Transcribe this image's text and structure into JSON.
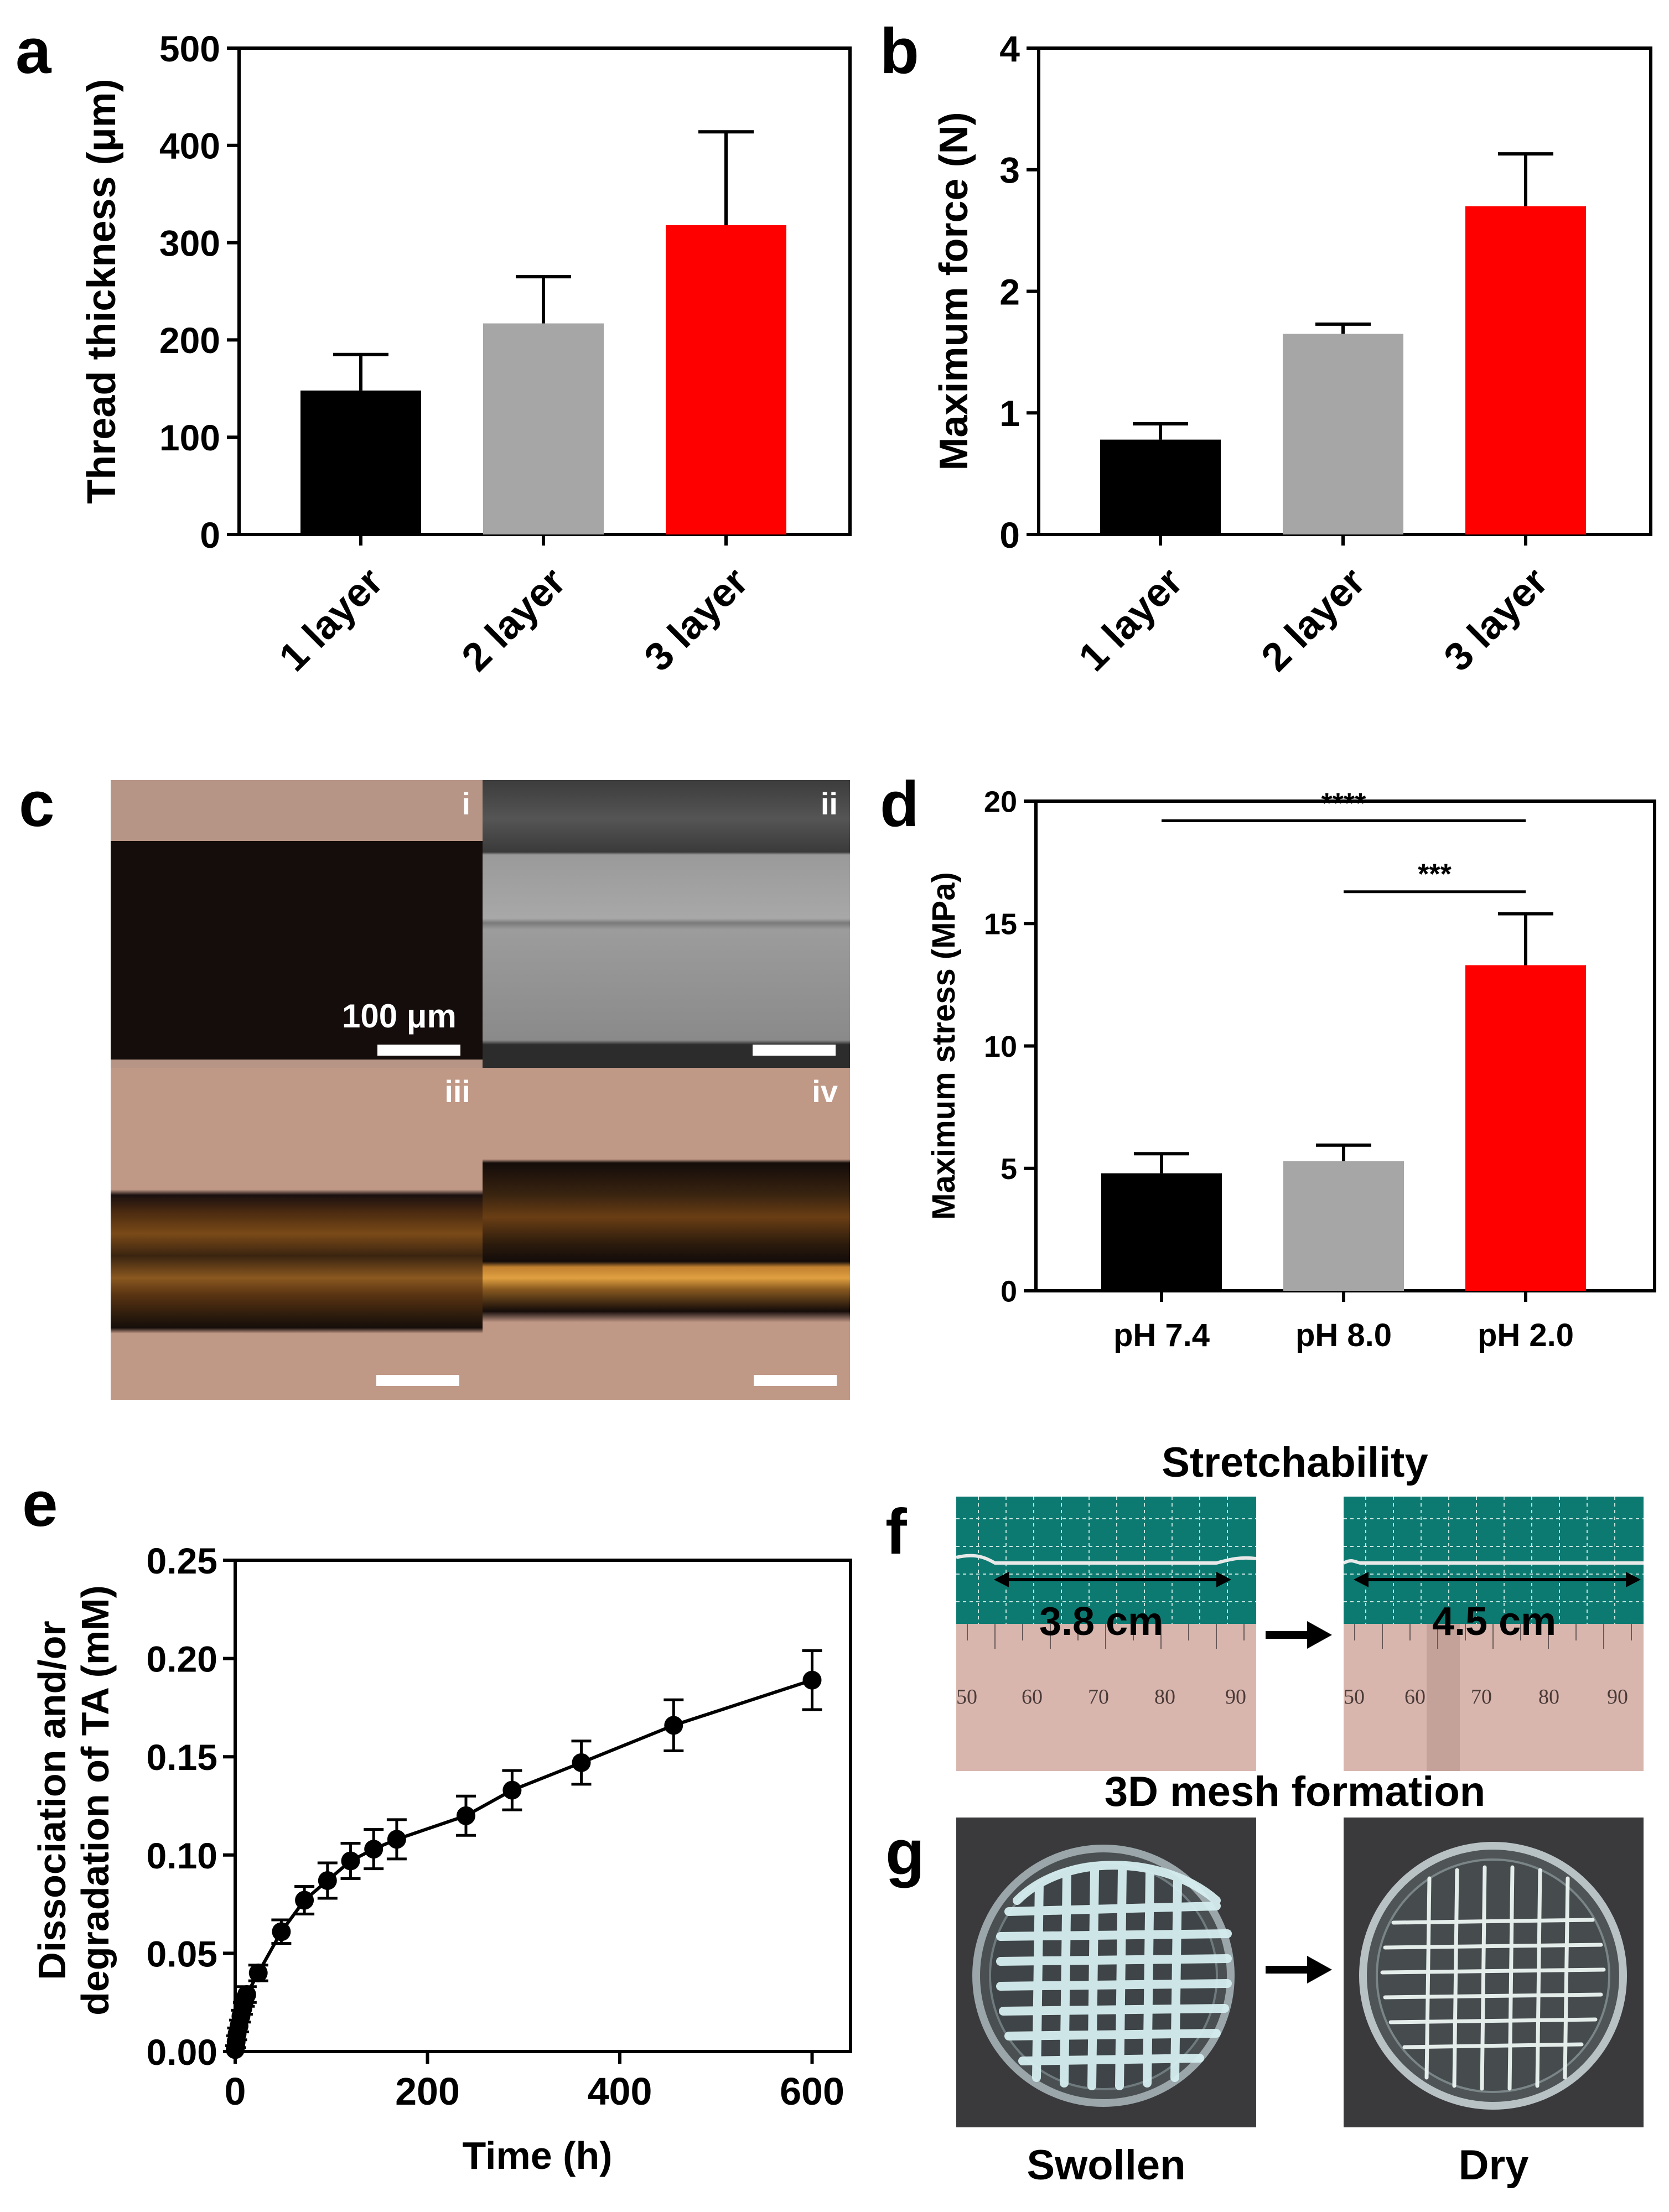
{
  "panel_labels": {
    "a": "a",
    "b": "b",
    "c": "c",
    "d": "d",
    "e": "e",
    "f": "f",
    "g": "g"
  },
  "colors": {
    "black": "#000000",
    "gray": "#a6a6a6",
    "red": "#ff0000"
  },
  "chart_data": [
    {
      "id": "a",
      "type": "bar",
      "categories": [
        "1 layer",
        "2 layer",
        "3 layer"
      ],
      "values": [
        148,
        217,
        318
      ],
      "errors": [
        37,
        48,
        96
      ],
      "colors": [
        "#000000",
        "#a6a6a6",
        "#ff0000"
      ],
      "ylabel": "Thread thickness (μm)",
      "ylim": [
        0,
        500
      ],
      "yticks": [
        0,
        100,
        200,
        300,
        400,
        500
      ]
    },
    {
      "id": "b",
      "type": "bar",
      "categories": [
        "1 layer",
        "2 layer",
        "3 layer"
      ],
      "values": [
        0.78,
        1.65,
        2.7
      ],
      "errors": [
        0.13,
        0.08,
        0.43
      ],
      "colors": [
        "#000000",
        "#a6a6a6",
        "#ff0000"
      ],
      "ylabel": "Maximum force (N)",
      "ylim": [
        0,
        4
      ],
      "yticks": [
        0,
        1,
        2,
        3,
        4
      ]
    },
    {
      "id": "d",
      "type": "bar",
      "categories": [
        "pH 7.4",
        "pH 8.0",
        "pH 2.0"
      ],
      "values": [
        4.8,
        5.3,
        13.3
      ],
      "errors": [
        0.8,
        0.65,
        2.1
      ],
      "colors": [
        "#000000",
        "#a6a6a6",
        "#ff0000"
      ],
      "ylabel": "Maximum stress (MPa)",
      "ylim": [
        0,
        20
      ],
      "yticks": [
        0,
        5,
        10,
        15,
        20
      ],
      "significance": [
        {
          "from": 0,
          "to": 2,
          "label": "****",
          "y": 19.2
        },
        {
          "from": 1,
          "to": 2,
          "label": "***",
          "y": 16.3
        }
      ]
    },
    {
      "id": "e",
      "type": "line",
      "x": [
        0,
        1,
        2,
        4,
        6,
        8,
        10,
        12,
        24,
        48,
        72,
        96,
        120,
        144,
        168,
        240,
        288,
        360,
        456,
        600
      ],
      "y": [
        0.001,
        0.005,
        0.009,
        0.013,
        0.018,
        0.022,
        0.026,
        0.029,
        0.04,
        0.061,
        0.077,
        0.087,
        0.097,
        0.103,
        0.108,
        0.12,
        0.133,
        0.147,
        0.166,
        0.189
      ],
      "errors": [
        0.002,
        0.003,
        0.003,
        0.003,
        0.003,
        0.003,
        0.003,
        0.004,
        0.004,
        0.006,
        0.007,
        0.009,
        0.009,
        0.01,
        0.01,
        0.01,
        0.01,
        0.011,
        0.013,
        0.015
      ],
      "xlabel": "Time (h)",
      "ylabel_line1": "Dissociation and/or",
      "ylabel_line2": "degradation of TA (mM)",
      "xlim": [
        0,
        640
      ],
      "xticks": [
        0,
        200,
        400,
        600
      ],
      "ylim": [
        0,
        0.25
      ],
      "yticks": [
        "0.00",
        "0.05",
        "0.10",
        "0.15",
        "0.20",
        "0.25"
      ]
    }
  ],
  "panel_c": {
    "tiles": [
      {
        "id": "i",
        "label": "i",
        "scale_text": "100 μm"
      },
      {
        "id": "ii",
        "label": "ii"
      },
      {
        "id": "iii",
        "label": "iii"
      },
      {
        "id": "iv",
        "label": "iv"
      }
    ]
  },
  "panel_f": {
    "title": "Stretchability",
    "left_length": "3.8 cm",
    "right_length": "4.5 cm",
    "ruler_numbers_left": [
      "50",
      "60",
      "70",
      "80",
      "90"
    ],
    "ruler_numbers_right": [
      "50",
      "60",
      "70",
      "80",
      "90"
    ]
  },
  "panel_g": {
    "title": "3D mesh formation",
    "left_caption": "Swollen",
    "right_caption": "Dry"
  }
}
